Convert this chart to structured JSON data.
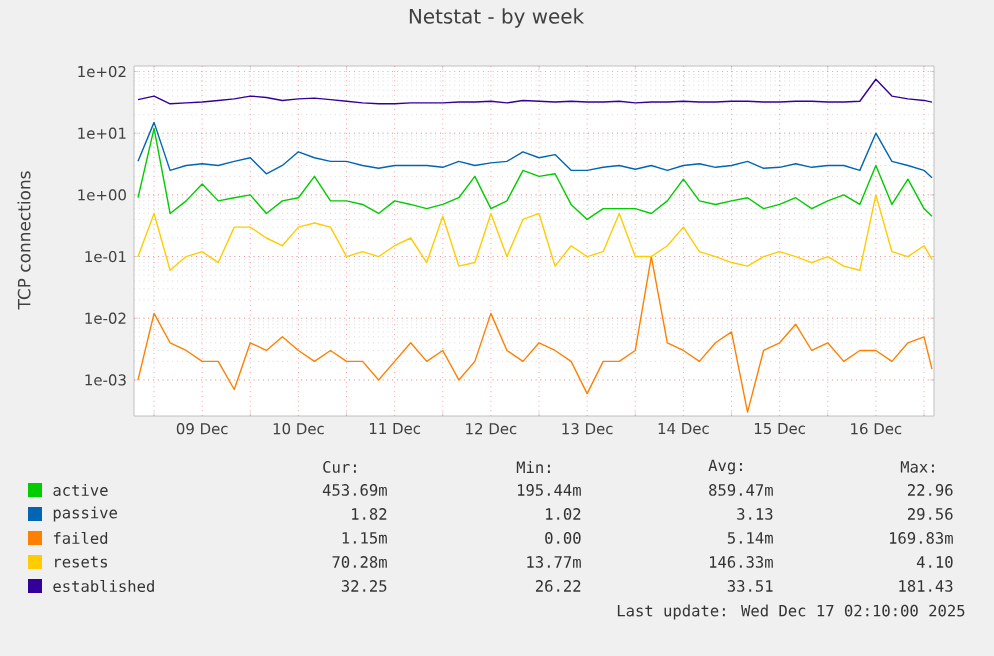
{
  "chart_data": {
    "type": "line",
    "title": "Netstat - by week",
    "ylabel": "TCP connections",
    "log": "y",
    "grid": true,
    "legend": "bottom",
    "marker": "none",
    "line_style": "solid",
    "xlim": [
      "2025-12-08T19:00",
      "2025-12-17T02:30"
    ],
    "ylim": [
      0.00026,
      123
    ],
    "xticks": [
      {
        "value": "2025-12-09T00:00",
        "label": null
      },
      {
        "value": "2025-12-09T12:00",
        "label": "09 Dec"
      },
      {
        "value": "2025-12-10T00:00",
        "label": null
      },
      {
        "value": "2025-12-10T12:00",
        "label": "10 Dec"
      },
      {
        "value": "2025-12-11T00:00",
        "label": null
      },
      {
        "value": "2025-12-11T12:00",
        "label": "11 Dec"
      },
      {
        "value": "2025-12-12T00:00",
        "label": null
      },
      {
        "value": "2025-12-12T12:00",
        "label": "12 Dec"
      },
      {
        "value": "2025-12-13T00:00",
        "label": null
      },
      {
        "value": "2025-12-13T12:00",
        "label": "13 Dec"
      },
      {
        "value": "2025-12-14T00:00",
        "label": null
      },
      {
        "value": "2025-12-14T12:00",
        "label": "14 Dec"
      },
      {
        "value": "2025-12-15T00:00",
        "label": null
      },
      {
        "value": "2025-12-15T12:00",
        "label": "15 Dec"
      },
      {
        "value": "2025-12-16T00:00",
        "label": null
      },
      {
        "value": "2025-12-16T12:00",
        "label": "16 Dec"
      },
      {
        "value": "2025-12-17T00:00",
        "label": null
      }
    ],
    "yticks": [
      {
        "value": 0.001,
        "label": "1e-03"
      },
      {
        "value": 0.01,
        "label": "1e-02"
      },
      {
        "value": 0.1,
        "label": "1e-01"
      },
      {
        "value": 1,
        "label": "1e+00"
      },
      {
        "value": 10,
        "label": "1e+01"
      },
      {
        "value": 100,
        "label": "1e+02"
      }
    ],
    "x": [
      "2025-12-08T20:00",
      "2025-12-09T00:00",
      "2025-12-09T04:00",
      "2025-12-09T08:00",
      "2025-12-09T12:00",
      "2025-12-09T16:00",
      "2025-12-09T20:00",
      "2025-12-10T00:00",
      "2025-12-10T04:00",
      "2025-12-10T08:00",
      "2025-12-10T12:00",
      "2025-12-10T16:00",
      "2025-12-10T20:00",
      "2025-12-11T00:00",
      "2025-12-11T04:00",
      "2025-12-11T08:00",
      "2025-12-11T12:00",
      "2025-12-11T16:00",
      "2025-12-11T20:00",
      "2025-12-12T00:00",
      "2025-12-12T04:00",
      "2025-12-12T08:00",
      "2025-12-12T12:00",
      "2025-12-12T16:00",
      "2025-12-12T20:00",
      "2025-12-13T00:00",
      "2025-12-13T04:00",
      "2025-12-13T08:00",
      "2025-12-13T12:00",
      "2025-12-13T16:00",
      "2025-12-13T20:00",
      "2025-12-14T00:00",
      "2025-12-14T04:00",
      "2025-12-14T08:00",
      "2025-12-14T12:00",
      "2025-12-14T16:00",
      "2025-12-14T20:00",
      "2025-12-15T00:00",
      "2025-12-15T04:00",
      "2025-12-15T08:00",
      "2025-12-15T12:00",
      "2025-12-15T16:00",
      "2025-12-15T20:00",
      "2025-12-16T00:00",
      "2025-12-16T04:00",
      "2025-12-16T08:00",
      "2025-12-16T12:00",
      "2025-12-16T16:00",
      "2025-12-16T20:00",
      "2025-12-17T00:00",
      "2025-12-17T02:00"
    ],
    "series": [
      {
        "name": "active",
        "color": "#00cc00",
        "values": [
          0.9,
          12,
          0.5,
          0.8,
          1.5,
          0.8,
          0.9,
          1,
          0.5,
          0.8,
          0.9,
          2,
          0.8,
          0.8,
          0.7,
          0.5,
          0.8,
          0.7,
          0.6,
          0.7,
          0.9,
          2,
          0.6,
          0.8,
          2.5,
          2,
          2.2,
          0.7,
          0.4,
          0.6,
          0.6,
          0.6,
          0.5,
          0.8,
          1.8,
          0.8,
          0.7,
          0.8,
          0.9,
          0.6,
          0.7,
          0.9,
          0.6,
          0.8,
          1,
          0.7,
          3,
          0.7,
          1.8,
          0.6,
          0.45
        ]
      },
      {
        "name": "passive",
        "color": "#0066b3",
        "values": [
          3.5,
          15,
          2.5,
          3,
          3.2,
          3,
          3.5,
          4,
          2.2,
          3,
          5,
          4,
          3.5,
          3.5,
          3,
          2.7,
          3,
          3,
          3,
          2.8,
          3.5,
          3,
          3.3,
          3.5,
          5,
          4,
          4.5,
          2.5,
          2.5,
          2.8,
          3,
          2.6,
          3,
          2.5,
          3,
          3.2,
          2.8,
          3,
          3.5,
          2.7,
          2.8,
          3.2,
          2.8,
          3,
          3,
          2.5,
          10,
          3.5,
          3,
          2.5,
          1.9
        ]
      },
      {
        "name": "failed",
        "color": "#ff8000",
        "values": [
          0.001,
          0.012,
          0.004,
          0.003,
          0.002,
          0.002,
          0.0007,
          0.004,
          0.003,
          0.005,
          0.003,
          0.002,
          0.003,
          0.002,
          0.002,
          0.001,
          0.002,
          0.004,
          0.002,
          0.003,
          0.001,
          0.002,
          0.012,
          0.003,
          0.002,
          0.004,
          0.003,
          0.002,
          0.0006,
          0.002,
          0.002,
          0.003,
          0.1,
          0.004,
          0.003,
          0.002,
          0.004,
          0.006,
          0.0003,
          0.003,
          0.004,
          0.008,
          0.003,
          0.004,
          0.002,
          0.003,
          0.003,
          0.002,
          0.004,
          0.005,
          0.0015
        ]
      },
      {
        "name": "resets",
        "color": "#ffcc00",
        "values": [
          0.1,
          0.5,
          0.06,
          0.1,
          0.12,
          0.08,
          0.3,
          0.3,
          0.2,
          0.15,
          0.3,
          0.35,
          0.3,
          0.1,
          0.12,
          0.1,
          0.15,
          0.2,
          0.08,
          0.45,
          0.07,
          0.08,
          0.5,
          0.1,
          0.4,
          0.5,
          0.07,
          0.15,
          0.1,
          0.12,
          0.5,
          0.1,
          0.1,
          0.15,
          0.3,
          0.12,
          0.1,
          0.08,
          0.07,
          0.1,
          0.12,
          0.1,
          0.08,
          0.1,
          0.07,
          0.06,
          1,
          0.12,
          0.1,
          0.15,
          0.09
        ]
      },
      {
        "name": "established",
        "color": "#330099",
        "values": [
          35,
          40,
          30,
          31,
          32,
          34,
          36,
          40,
          38,
          34,
          36,
          37,
          35,
          33,
          31,
          30,
          30,
          31,
          31,
          31,
          32,
          32,
          33,
          31,
          34,
          33,
          32,
          33,
          32,
          32,
          33,
          31,
          32,
          32,
          33,
          32,
          32,
          33,
          33,
          32,
          32,
          33,
          33,
          32,
          32,
          33,
          75,
          40,
          36,
          34,
          32
        ]
      }
    ],
    "annotations": [
      "Cur:",
      "Min:",
      "Avg:",
      "Max:",
      "453.69m",
      "195.44m",
      "859.47m",
      "22.96",
      "1.82",
      "1.02",
      "3.13",
      "29.56",
      "1.15m",
      "0.00",
      "5.14m",
      "169.83m",
      "70.28m",
      "13.77m",
      "146.33m",
      "4.10",
      "32.25",
      "26.22",
      "33.51",
      "181.43",
      "Last update: Wed Dec 17 02:10:00 2025"
    ]
  }
}
